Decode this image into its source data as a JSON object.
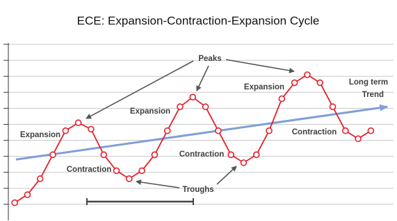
{
  "chart_data": {
    "type": "line",
    "title": "ECE: Expansion-Contraction-Expansion Cycle",
    "xlim": [
      -0.5,
      30
    ],
    "ylim": [
      0,
      11
    ],
    "yticks": [
      1,
      2,
      3,
      4,
      5,
      6,
      7,
      8,
      9,
      10,
      11
    ],
    "grid": true,
    "series": [
      {
        "color": "#e3202b",
        "x": [
          0,
          1,
          2,
          3,
          4,
          5,
          6,
          7,
          8,
          9,
          10,
          11,
          12,
          13,
          14,
          15,
          16,
          17,
          18,
          19,
          20,
          21,
          22,
          23,
          24,
          25,
          26,
          27,
          28
        ],
        "values": [
          1.1,
          1.6,
          2.6,
          4.1,
          5.6,
          6.1,
          5.7,
          4.1,
          3.1,
          2.6,
          3.1,
          4.1,
          5.6,
          7.1,
          7.7,
          7.1,
          5.6,
          4.1,
          3.6,
          4.1,
          5.6,
          7.6,
          8.6,
          9.1,
          8.6,
          7.1,
          5.6,
          5.1,
          5.6
        ]
      },
      {
        "color": "#7f9fd8",
        "x": [
          0.1,
          29.3
        ],
        "values": [
          3.8,
          7.1
        ]
      }
    ],
    "annotations": [
      "Peaks",
      "Expansion",
      "Contraction",
      "Expansion",
      "Contraction",
      "Expansion",
      "Contraction",
      "Troughs",
      "Long term",
      "Trend"
    ]
  }
}
